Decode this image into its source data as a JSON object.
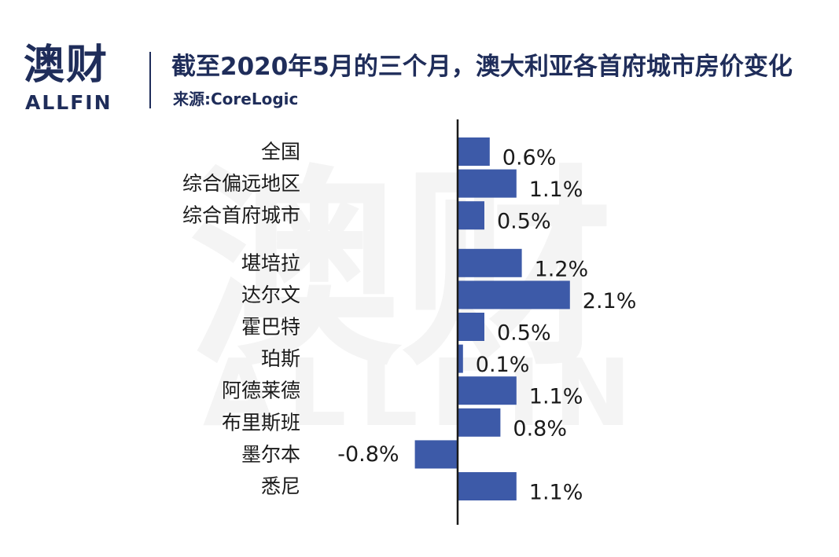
{
  "header": {
    "logo_cn": "澳财",
    "logo_en": "ALLFIN",
    "title": "截至2020年5月的三个月，澳大利亚各首府城市房价变化",
    "source": "来源:CoreLogic"
  },
  "watermark": {
    "cn": "澳财",
    "en": "ALLFIN"
  },
  "colors": {
    "bar": "#3d5aa8",
    "axis": "#1a1a1a",
    "brand": "#1f2d5a",
    "watermark": "#f4f4f4"
  },
  "chart_data": {
    "type": "bar",
    "orientation": "horizontal",
    "categories": [
      "全国",
      "综合偏远地区",
      "综合首府城市",
      "堪培拉",
      "达尔文",
      "霍巴特",
      "珀斯",
      "阿德莱德",
      "布里斯班",
      "墨尔本",
      "悉尼"
    ],
    "values": [
      0.6,
      1.1,
      0.5,
      1.2,
      2.1,
      0.5,
      0.1,
      1.1,
      0.8,
      -0.8,
      1.1
    ],
    "value_labels": [
      "0.6%",
      "1.1%",
      "0.5%",
      "1.2%",
      "2.1%",
      "0.5%",
      "0.1%",
      "1.1%",
      "0.8%",
      "-0.8%",
      "1.1%"
    ],
    "unit": "%",
    "groups": [
      [
        0,
        1,
        2
      ],
      [
        3,
        4,
        5,
        6,
        7,
        8,
        9,
        10
      ]
    ],
    "title": "截至2020年5月的三个月，澳大利亚各首府城市房价变化",
    "xlabel": "",
    "ylabel": "",
    "grid": false,
    "legend": "none"
  }
}
